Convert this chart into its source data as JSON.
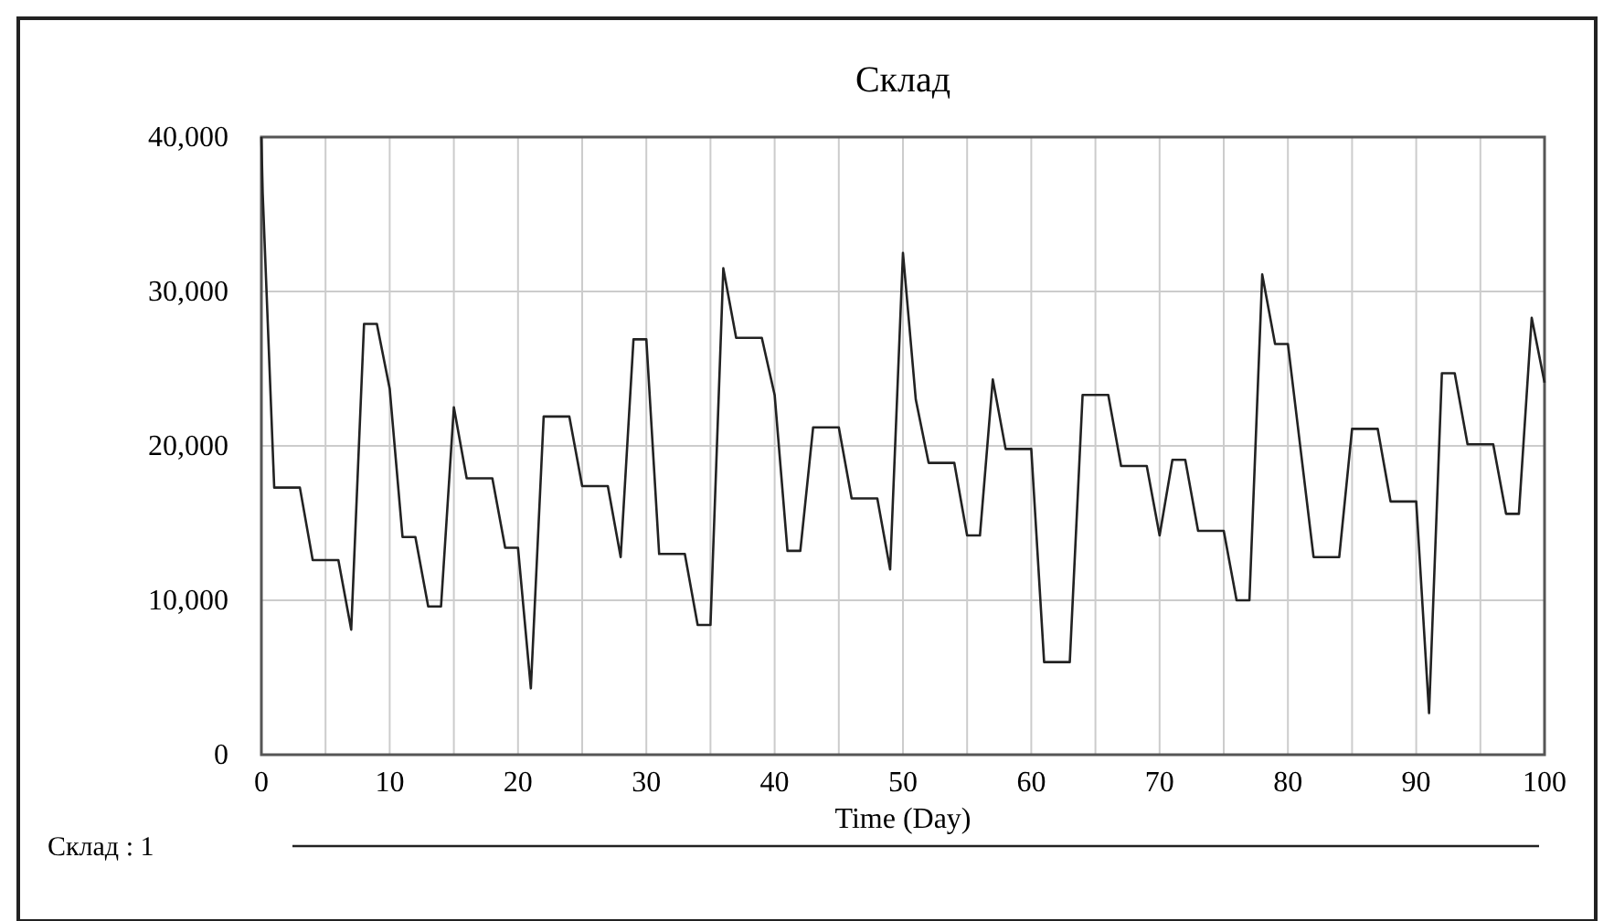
{
  "chart_data": {
    "type": "line",
    "title": "Склад",
    "xlabel": "Time (Day)",
    "xlim": [
      0,
      100
    ],
    "ylim": [
      0,
      40000
    ],
    "xticks": [
      0,
      {
        "value": 5,
        "label": null
      },
      10,
      {
        "value": 15,
        "label": null
      },
      20,
      {
        "value": 25,
        "label": null
      },
      30,
      {
        "value": 35,
        "label": null
      },
      40,
      {
        "value": 45,
        "label": null
      },
      50,
      {
        "value": 55,
        "label": null
      },
      60,
      {
        "value": 65,
        "label": null
      },
      70,
      {
        "value": 75,
        "label": null
      },
      80,
      {
        "value": 85,
        "label": null
      },
      90,
      {
        "value": 95,
        "label": null
      },
      100
    ],
    "yticks": [
      0,
      {
        "value": 10000,
        "label": "10,000"
      },
      {
        "value": 20000,
        "label": "20,000"
      },
      {
        "value": 30000,
        "label": "30,000"
      },
      {
        "value": 40000,
        "label": "40,000"
      }
    ],
    "grid": true,
    "legend": "bottom",
    "marker": "none",
    "line_style": "solid",
    "series": [
      {
        "name": "Склад : 1",
        "color": "#222222",
        "x": [
          0,
          0.1,
          1,
          3,
          4,
          6,
          7,
          8,
          9,
          10,
          11,
          12,
          13,
          14,
          15,
          16,
          18,
          19,
          20,
          21,
          22,
          24,
          25,
          27,
          28,
          29,
          30,
          31,
          33,
          34,
          35,
          36,
          37,
          39,
          40,
          41,
          42,
          43,
          45,
          46,
          48,
          49,
          50,
          51,
          52,
          54,
          55,
          56,
          57,
          58,
          60,
          61,
          63,
          64,
          66,
          67,
          69,
          70,
          71,
          72,
          73,
          75,
          76,
          77,
          78,
          79,
          80,
          82,
          84,
          85,
          87,
          88,
          90,
          91,
          92,
          93,
          94,
          96,
          97,
          98,
          99,
          100
        ],
        "values": [
          40000,
          36400,
          17300,
          17300,
          12600,
          12600,
          8100,
          27900,
          27900,
          23700,
          14100,
          14100,
          9600,
          9600,
          22500,
          17900,
          17900,
          13400,
          13400,
          4300,
          21900,
          21900,
          17400,
          17400,
          12800,
          26900,
          26900,
          13000,
          13000,
          8400,
          8400,
          31500,
          27000,
          27000,
          23300,
          13200,
          13200,
          21200,
          21200,
          16600,
          16600,
          12000,
          32500,
          23000,
          18900,
          18900,
          14200,
          14200,
          24300,
          19800,
          19800,
          6000,
          6000,
          23300,
          23300,
          18700,
          18700,
          14200,
          19100,
          19100,
          14500,
          14500,
          10000,
          10000,
          31100,
          26600,
          26600,
          12800,
          12800,
          21100,
          21100,
          16400,
          16400,
          2700,
          24700,
          24700,
          20100,
          20100,
          15600,
          15600,
          28300,
          24100
        ]
      }
    ]
  }
}
